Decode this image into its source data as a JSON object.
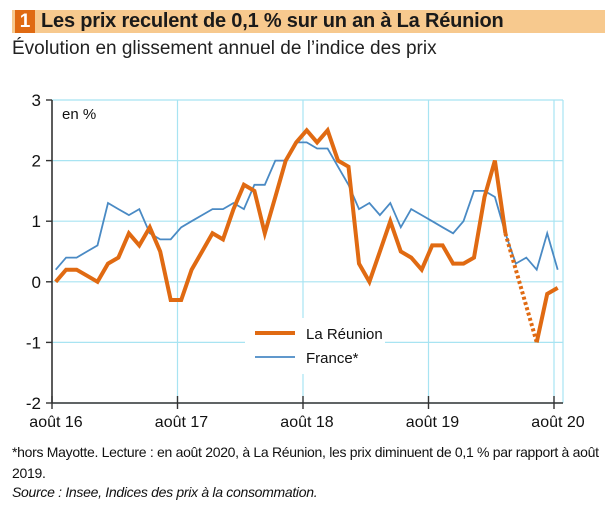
{
  "header": {
    "badge": "1",
    "title": "Les prix reculent de 0,1 % sur un an à La Réunion",
    "subtitle": "Évolution en glissement annuel de l’indice des prix"
  },
  "chart_data": {
    "type": "line",
    "title": "Les prix reculent de 0,1 % sur un an à La Réunion",
    "subtitle": "Évolution en glissement annuel de l’indice des prix",
    "unit_label": "en %",
    "xlabel": "",
    "ylabel": "en %",
    "ylim": [
      -2,
      3
    ],
    "yticks": [
      3,
      2,
      1,
      0,
      -1,
      -2
    ],
    "x_tick_labels": [
      "août 16",
      "août 17",
      "août 18",
      "août 19",
      "août 20"
    ],
    "x_start": "2016-08",
    "x_end": "2020-08",
    "x_frequency": "monthly",
    "grid": true,
    "legend_position": "bottom-center",
    "series": [
      {
        "name": "La Réunion",
        "color": "#E06A12",
        "values": [
          0.0,
          0.2,
          0.2,
          0.1,
          0.0,
          0.3,
          0.4,
          0.8,
          0.6,
          0.9,
          0.5,
          -0.3,
          -0.3,
          0.2,
          0.5,
          0.8,
          0.7,
          1.2,
          1.6,
          1.5,
          0.8,
          1.4,
          2.0,
          2.3,
          2.5,
          2.3,
          2.5,
          2.0,
          1.9,
          0.3,
          0.0,
          0.5,
          1.0,
          0.5,
          0.4,
          0.2,
          0.6,
          0.6,
          0.3,
          0.3,
          0.4,
          1.4,
          2.0,
          0.8,
          null,
          null,
          -1.0,
          -0.2,
          -0.1
        ],
        "gap_style": "dotted"
      },
      {
        "name": "France*",
        "color": "#4A8AC4",
        "values": [
          0.2,
          0.4,
          0.4,
          0.5,
          0.6,
          1.3,
          1.2,
          1.1,
          1.2,
          0.8,
          0.7,
          0.7,
          0.9,
          1.0,
          1.1,
          1.2,
          1.2,
          1.3,
          1.2,
          1.6,
          1.6,
          2.0,
          2.0,
          2.3,
          2.3,
          2.2,
          2.2,
          1.9,
          1.6,
          1.2,
          1.3,
          1.1,
          1.3,
          0.9,
          1.2,
          1.1,
          1.0,
          0.9,
          0.8,
          1.0,
          1.5,
          1.5,
          1.4,
          0.8,
          0.3,
          0.4,
          0.2,
          0.8,
          0.2
        ]
      }
    ]
  },
  "footnote": "*hors Mayotte. Lecture : en août 2020, à La Réunion, les prix diminuent de 0,1 % par rapport à août 2019.",
  "source": "Source : Insee, Indices des prix à la consommation.",
  "colors": {
    "title_bar": "#F7C98E",
    "badge": "#E06A12",
    "grid": "#A8E4F2",
    "axis": "#333333"
  }
}
